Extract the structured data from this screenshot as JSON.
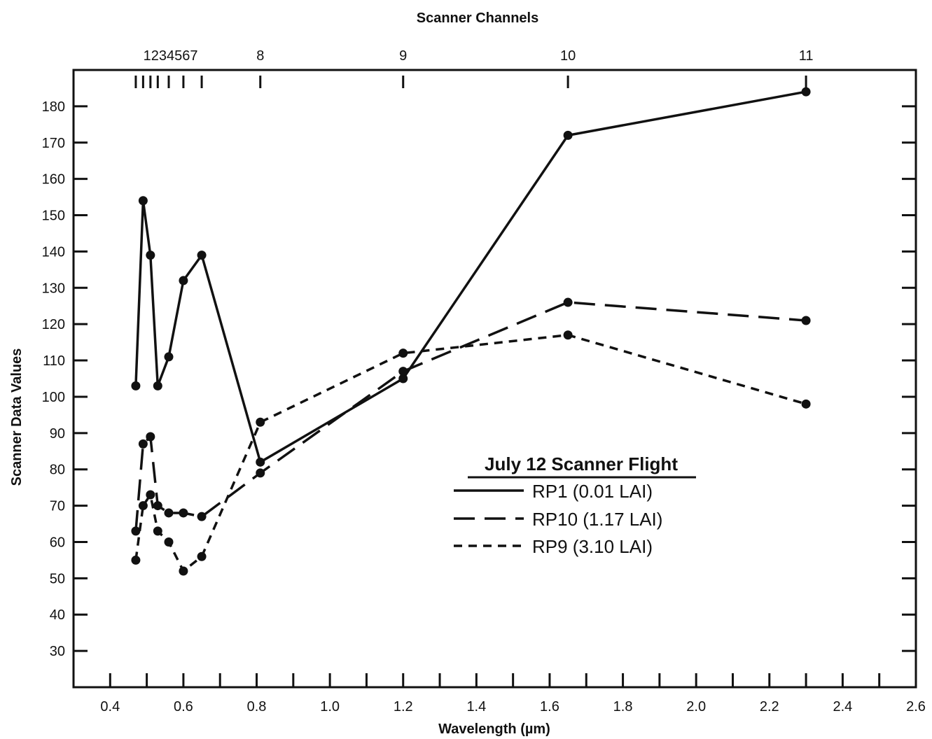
{
  "chart_data": {
    "type": "line",
    "title": "",
    "xlabel": "Wavelength (µm)",
    "ylabel": "Scanner Data Values",
    "top_axis_label": "Scanner Channels",
    "xlim": [
      0.3,
      2.6
    ],
    "ylim": [
      20,
      190
    ],
    "x_ticks": [
      0.4,
      0.6,
      0.8,
      1.0,
      1.2,
      1.4,
      1.6,
      1.8,
      2.0,
      2.2,
      2.4,
      2.6
    ],
    "x_tick_labels": [
      "0.4",
      "0.6",
      "0.8",
      "1.0",
      "1.2",
      "1.4",
      "1.6",
      "1.8",
      "2.0",
      "2.2",
      "2.4",
      "2.6"
    ],
    "y_ticks": [
      30,
      40,
      50,
      60,
      70,
      80,
      90,
      100,
      110,
      120,
      130,
      140,
      150,
      160,
      170,
      180
    ],
    "y_tick_labels": [
      "30",
      "40",
      "50",
      "60",
      "70",
      "80",
      "90",
      "100",
      "110",
      "120",
      "130",
      "140",
      "150",
      "160",
      "170",
      "180"
    ],
    "channel_ticks": [
      0.47,
      0.49,
      0.51,
      0.53,
      0.56,
      0.6,
      0.65,
      0.81,
      1.2,
      1.65,
      2.3
    ],
    "channel_labels": [
      {
        "text": "1234567",
        "x": 0.565
      },
      {
        "text": "8",
        "x": 0.81
      },
      {
        "text": "9",
        "x": 1.2
      },
      {
        "text": "10",
        "x": 1.65
      },
      {
        "text": "11",
        "x": 2.3
      }
    ],
    "legend_title": "July 12 Scanner Flight",
    "legend_position": "center-right",
    "grid": false,
    "series": [
      {
        "name": "RP1 (0.01 LAI)",
        "style": "solid",
        "x": [
          0.47,
          0.49,
          0.51,
          0.53,
          0.56,
          0.6,
          0.65,
          0.81,
          1.2,
          1.65,
          2.3
        ],
        "y": [
          103,
          154,
          139,
          103,
          111,
          132,
          139,
          82,
          105,
          172,
          184
        ]
      },
      {
        "name": "RP10 (1.17 LAI)",
        "style": "long-dash",
        "x": [
          0.47,
          0.49,
          0.51,
          0.53,
          0.56,
          0.6,
          0.65,
          0.81,
          1.2,
          1.65,
          2.3
        ],
        "y": [
          63,
          87,
          89,
          70,
          68,
          68,
          67,
          79,
          107,
          126,
          121
        ]
      },
      {
        "name": "RP9 (3.10 LAI)",
        "style": "short-dash",
        "x": [
          0.47,
          0.49,
          0.51,
          0.53,
          0.56,
          0.6,
          0.65,
          0.81,
          1.2,
          1.65,
          2.3
        ],
        "y": [
          55,
          70,
          73,
          63,
          60,
          52,
          56,
          93,
          112,
          117,
          98
        ]
      }
    ]
  }
}
